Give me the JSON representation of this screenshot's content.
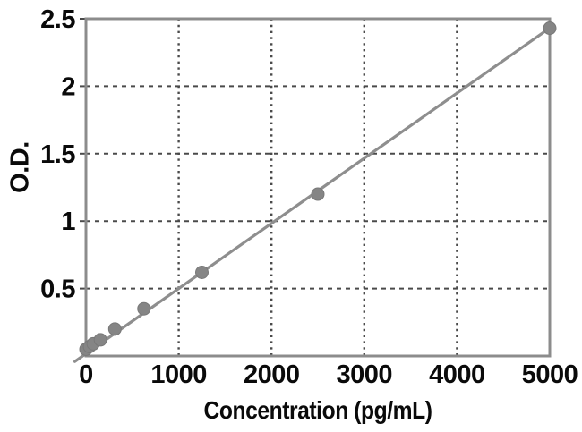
{
  "chart_data": {
    "type": "scatter",
    "title": "",
    "xlabel": "Concentration (pg/mL)",
    "ylabel": "O.D.",
    "x": [
      0,
      39,
      78,
      156,
      312,
      625,
      1250,
      2500,
      5000
    ],
    "y": [
      0.05,
      0.07,
      0.09,
      0.12,
      0.2,
      0.35,
      0.62,
      1.2,
      2.43
    ],
    "xlim": [
      0,
      5000
    ],
    "ylim": [
      0,
      2.5
    ],
    "x_ticks": [
      0,
      1000,
      2000,
      3000,
      4000,
      5000
    ],
    "x_tick_labels": [
      "0",
      "1000",
      "2000",
      "3000",
      "4000",
      "5000"
    ],
    "y_ticks": [
      0.5,
      1,
      1.5,
      2,
      2.5
    ],
    "y_tick_labels": [
      "0.5",
      "1",
      "1.5",
      "2",
      "2.5"
    ],
    "grid": "dashed-both-axes",
    "legend": "none",
    "trendline": {
      "slope": 0.000483,
      "intercept": 0.017,
      "x_start": -120,
      "x_end": 5000
    },
    "colors": {
      "marker": "#858585",
      "marker_edge": "#787878",
      "line": "#8e8e8e",
      "border": "#8c8c8c",
      "grid": "#4a4a4a",
      "text": "#0a0a0a",
      "background": "#ffffff"
    }
  }
}
